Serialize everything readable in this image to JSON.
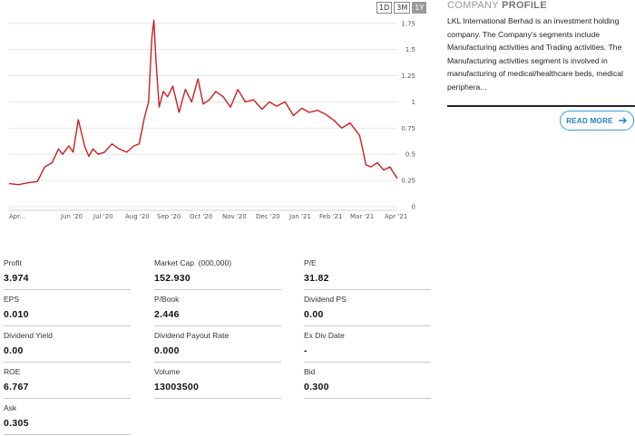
{
  "chart_controls": {
    "ranges": [
      "1D",
      "3M",
      "1Y"
    ],
    "active": "1Y"
  },
  "chart_data": {
    "type": "line",
    "title": "",
    "xlabel": "",
    "ylabel": "",
    "x_tick_labels": [
      "Apr...",
      "Jun '20",
      "Jul '20",
      "Aug '20",
      "Sep '20",
      "Oct '20",
      "Nov '20",
      "Dec '20",
      "Jan '21",
      "Feb '21",
      "Mar '21",
      "Apr '21"
    ],
    "y_ticks": [
      0,
      0.25,
      0.5,
      0.75,
      1,
      1.25,
      1.5,
      1.75
    ],
    "y_tick_labels": [
      "0",
      "0.25",
      "0.5",
      "0.75",
      "1",
      "1.25",
      "1.5",
      "1.75"
    ],
    "ylim": [
      0,
      1.8
    ],
    "grid": true,
    "series_color": "#cc1f1f",
    "series": [
      {
        "x": [
          "2020-04-01",
          "2020-04-10",
          "2020-04-20",
          "2020-04-28",
          "2020-05-05",
          "2020-05-12",
          "2020-05-18",
          "2020-05-22",
          "2020-05-28",
          "2020-06-01",
          "2020-06-06",
          "2020-06-12",
          "2020-06-16",
          "2020-06-20",
          "2020-06-25",
          "2020-07-01",
          "2020-07-08",
          "2020-07-15",
          "2020-07-22",
          "2020-07-29",
          "2020-08-03",
          "2020-08-08",
          "2020-08-12",
          "2020-08-15",
          "2020-08-17",
          "2020-08-19",
          "2020-08-22",
          "2020-08-26",
          "2020-08-30",
          "2020-09-04",
          "2020-09-10",
          "2020-09-16",
          "2020-09-22",
          "2020-09-28",
          "2020-10-03",
          "2020-10-09",
          "2020-10-15",
          "2020-10-22",
          "2020-10-29",
          "2020-11-05",
          "2020-11-12",
          "2020-11-20",
          "2020-11-28",
          "2020-12-05",
          "2020-12-12",
          "2020-12-20",
          "2020-12-28",
          "2021-01-05",
          "2021-01-12",
          "2021-01-20",
          "2021-01-28",
          "2021-02-05",
          "2021-02-12",
          "2021-02-20",
          "2021-02-26",
          "2021-03-01",
          "2021-03-04",
          "2021-03-07",
          "2021-03-12",
          "2021-03-18",
          "2021-03-24",
          "2021-03-30",
          "2021-04-02",
          "2021-04-06"
        ],
        "y": [
          0.22,
          0.21,
          0.23,
          0.24,
          0.38,
          0.42,
          0.55,
          0.5,
          0.58,
          0.52,
          0.83,
          0.58,
          0.48,
          0.55,
          0.5,
          0.52,
          0.6,
          0.55,
          0.52,
          0.58,
          0.6,
          0.85,
          1.0,
          1.6,
          1.78,
          1.4,
          0.95,
          1.1,
          1.05,
          1.15,
          0.9,
          1.12,
          1.0,
          1.22,
          0.98,
          1.02,
          1.1,
          1.05,
          0.95,
          1.12,
          1.0,
          1.02,
          0.93,
          1.0,
          0.96,
          1.0,
          0.87,
          0.94,
          0.9,
          0.92,
          0.88,
          0.82,
          0.75,
          0.8,
          0.72,
          0.68,
          0.55,
          0.4,
          0.38,
          0.42,
          0.35,
          0.38,
          0.33,
          0.27
        ]
      }
    ]
  },
  "stats": [
    {
      "label": "Profit",
      "value": "3.974",
      "unit": ""
    },
    {
      "label": "Market Cap",
      "value": "152.930",
      "unit": "(000,000)"
    },
    {
      "label": "P/E",
      "value": "31.82",
      "unit": ""
    },
    {
      "label": "EPS",
      "value": "0.010",
      "unit": ""
    },
    {
      "label": "P/Book",
      "value": "2.446",
      "unit": ""
    },
    {
      "label": "Dividend PS",
      "value": "0.00",
      "unit": ""
    },
    {
      "label": "Dividend Yield",
      "value": "0.00",
      "unit": ""
    },
    {
      "label": "Dividend Payout Rate",
      "value": "0.000",
      "unit": ""
    },
    {
      "label": "Ex Div Date",
      "value": "-",
      "unit": ""
    },
    {
      "label": "ROE",
      "value": "6.767",
      "unit": ""
    },
    {
      "label": "Volume",
      "value": "13003500",
      "unit": ""
    },
    {
      "label": "Bid",
      "value": "0.300",
      "unit": ""
    },
    {
      "label": "Ask",
      "value": "0.305",
      "unit": ""
    }
  ],
  "profile": {
    "title_prefix": "COMPANY",
    "title_bold": "PROFILE",
    "text": "LKL International Berhad is an investment holding company. The Company's segments include Manufacturing activities and Trading activities. The Manufacturing activities segment is involved in manufacturing of medical/healthcare beds, medical periphera...",
    "read_more_label": "READ MORE",
    "read_more_icon": "arrow-right-icon",
    "accent_color": "#1f7fc2"
  }
}
